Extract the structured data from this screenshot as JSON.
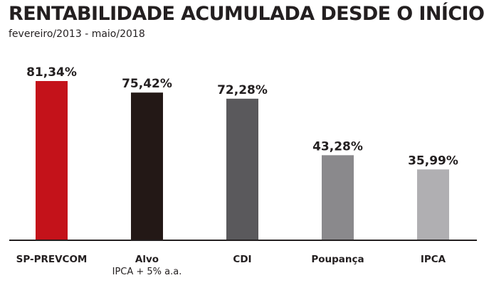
{
  "chart_data": {
    "type": "bar",
    "title": "RENTABILIDADE ACUMULADA DESDE O INÍCIO",
    "subtitle": "fevereiro/2013 - maio/2018",
    "categories": [
      "SP-PREVCOM",
      "Alvo",
      "CDI",
      "Poupança",
      "IPCA"
    ],
    "category_sublabels": [
      "",
      "IPCA + 5% a.a.",
      "",
      "",
      ""
    ],
    "values": [
      81.34,
      75.42,
      72.28,
      43.28,
      35.99
    ],
    "value_labels": [
      "81,34%",
      "75,42%",
      "72,28%",
      "43,28%",
      "35,99%"
    ],
    "colors": [
      "#c4121a",
      "#231816",
      "#5a595c",
      "#8a898c",
      "#b0afb2"
    ],
    "xlabel": "",
    "ylabel": "",
    "ylim": [
      0,
      81.34
    ],
    "grid": false,
    "legend": "none"
  }
}
